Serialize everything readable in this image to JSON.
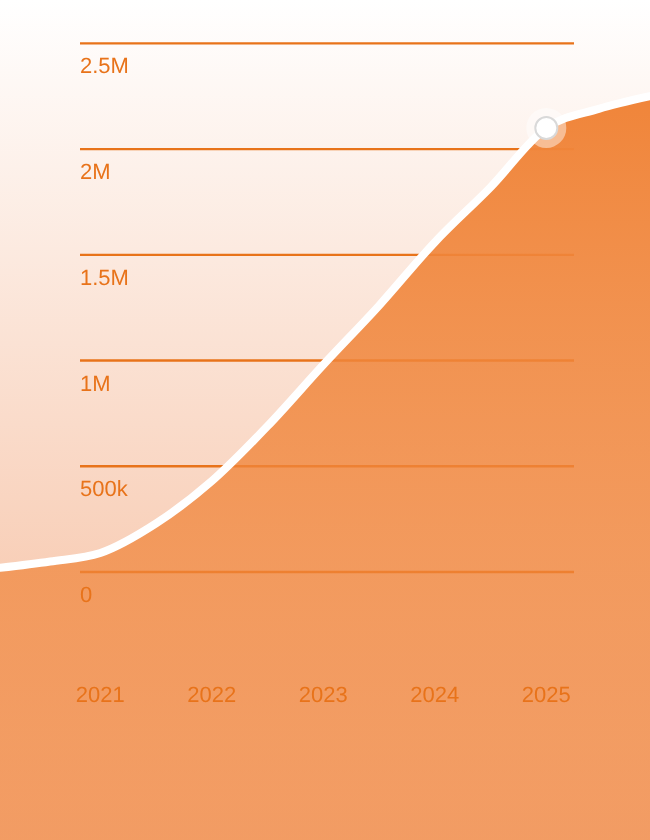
{
  "chart_data": {
    "type": "area",
    "x": [
      2020.1,
      2020.55,
      2021,
      2021.5,
      2022,
      2022.5,
      2023,
      2023.5,
      2024,
      2024.5,
      2025,
      2025.47,
      2025.93
    ],
    "series": [
      {
        "color": "#f0853a",
        "values": [
          20000,
          50000,
          90000,
          230000,
          430000,
          690000,
          980000,
          1260000,
          1560000,
          1820000,
          2100000,
          2190000,
          2250000
        ]
      },
      {
        "type": "scatter",
        "color": "#ffffff",
        "x": [
          2025
        ],
        "values": [
          2100000
        ],
        "marker": "circle"
      }
    ],
    "xlim": [
      2020.1,
      2025.93
    ],
    "xticks": [
      2021,
      2022,
      2023,
      2024,
      2025
    ],
    "ylim": [
      0,
      2500000
    ],
    "yticks": [
      0,
      {
        "value": 500000,
        "label": "500k"
      },
      {
        "value": 1000000,
        "label": "1M"
      },
      {
        "value": 1500000,
        "label": "1.5M"
      },
      {
        "value": 2000000,
        "label": "2M"
      },
      {
        "value": 2500000,
        "label": "2.5M"
      }
    ],
    "grid": "y"
  }
}
